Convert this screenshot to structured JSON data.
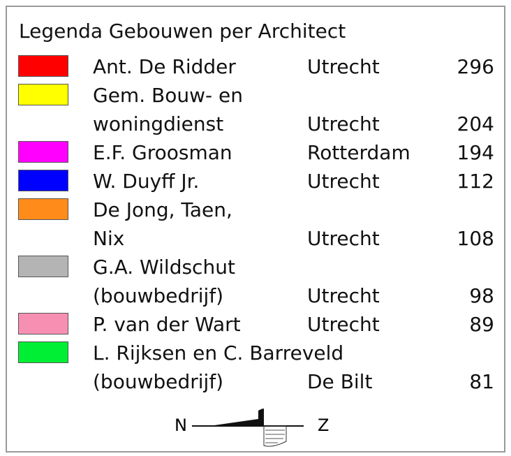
{
  "legend": {
    "title": "Legenda Gebouwen per Architect",
    "entries": [
      {
        "color": "#ff0000",
        "name_lines": [
          "Ant. De Ridder"
        ],
        "city": "Utrecht",
        "count": 296
      },
      {
        "color": "#ffff00",
        "name_lines": [
          "Gem. Bouw- en",
          "woningdienst"
        ],
        "city": "Utrecht",
        "count": 204
      },
      {
        "color": "#ff00ff",
        "name_lines": [
          "E.F. Groosman"
        ],
        "city": "Rotterdam",
        "count": 194
      },
      {
        "color": "#0000ff",
        "name_lines": [
          "W. Duyff Jr."
        ],
        "city": "Utrecht",
        "count": 112
      },
      {
        "color": "#ff8c1a",
        "name_lines": [
          "De Jong, Taen,",
          "Nix"
        ],
        "city": "Utrecht",
        "count": 108
      },
      {
        "color": "#b4b4b4",
        "name_lines": [
          "G.A. Wildschut",
          "(bouwbedrijf)"
        ],
        "city": "Utrecht",
        "count": 98
      },
      {
        "color": "#f78fb3",
        "name_lines": [
          "P. van der Wart"
        ],
        "city": "Utrecht",
        "count": 89
      },
      {
        "color": "#00ee33",
        "name_lines": [
          "L. Rijksen en C. Barreveld",
          "(bouwbedrijf)"
        ],
        "city": "De Bilt",
        "count": 81
      }
    ],
    "compass": {
      "north": "N",
      "south": "Z"
    }
  }
}
